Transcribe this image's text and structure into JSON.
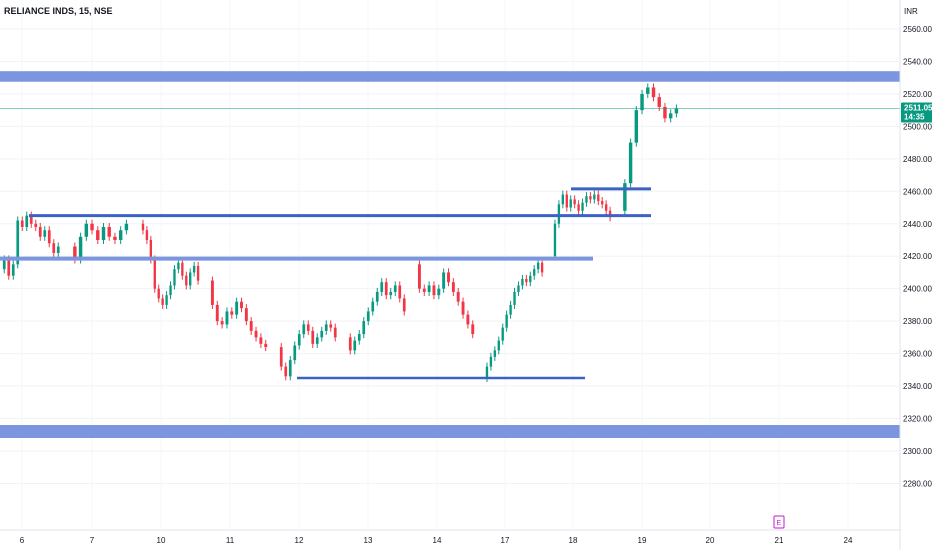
{
  "chart_data": {
    "type": "candlestick",
    "title": "RELIANCE INDS, 15, NSE",
    "currency": "INR",
    "ylim": [
      2272,
      2572
    ],
    "y_ticks": [
      2560,
      2540,
      2520,
      2500,
      2480,
      2460,
      2440,
      2420,
      2400,
      2380,
      2360,
      2340,
      2320,
      2300,
      2280
    ],
    "x_ticks": [
      "6",
      "7",
      "10",
      "11",
      "12",
      "13",
      "14",
      "17",
      "18",
      "19",
      "20",
      "21",
      "24"
    ],
    "grid": true,
    "current_price": {
      "value": "2511.05",
      "time": "14:35",
      "color": "#089981"
    },
    "earnings_marker": {
      "label": "E",
      "position": "21",
      "color": "#c21bd1"
    },
    "colors": {
      "up": "#089981",
      "down": "#f23645",
      "zone": "#7b96df",
      "line": "#3c62c4"
    },
    "zones": [
      {
        "from": 2527.5,
        "to": 2534
      },
      {
        "from": 2308,
        "to": 2316
      }
    ],
    "levels": [
      {
        "price": 2445,
        "from": "6",
        "to": "19",
        "kind": "line"
      },
      {
        "price": 2418.5,
        "from": "6",
        "to": "18",
        "kind": "zone-line"
      },
      {
        "price": 2345,
        "from": "12",
        "to": "18",
        "kind": "line"
      },
      {
        "price": 2461.5,
        "from": "18",
        "to": "19",
        "kind": "line"
      }
    ],
    "series": [
      {
        "session": "6",
        "path": [
          2412,
          2418,
          2408,
          2415,
          2442,
          2438,
          2445,
          2440,
          2438,
          2432,
          2436,
          2428,
          2422,
          2426
        ]
      },
      {
        "session": "7",
        "path": [
          2426,
          2418,
          2432,
          2440,
          2436,
          2430,
          2438,
          2432,
          2430,
          2436,
          2440
        ]
      },
      {
        "session": "10",
        "path": [
          2440,
          2436,
          2430,
          2418,
          2400,
          2394,
          2390,
          2396,
          2402,
          2412,
          2416,
          2408,
          2402,
          2410,
          2414,
          2405
        ]
      },
      {
        "session": "11",
        "path": [
          2405,
          2390,
          2380,
          2378,
          2386,
          2384,
          2392,
          2388,
          2380,
          2374,
          2370,
          2366,
          2364
        ]
      },
      {
        "session": "12",
        "path": [
          2364,
          2352,
          2346,
          2356,
          2365,
          2372,
          2378,
          2374,
          2366,
          2370,
          2374,
          2378,
          2376,
          2370
        ]
      },
      {
        "session": "13",
        "path": [
          2370,
          2362,
          2368,
          2372,
          2380,
          2386,
          2392,
          2398,
          2404,
          2396,
          2398,
          2402,
          2394,
          2386
        ]
      },
      {
        "session": "14",
        "path": [
          2415,
          2400,
          2398,
          2402,
          2396,
          2400,
          2410,
          2404,
          2398,
          2392,
          2384,
          2378,
          2372
        ]
      },
      {
        "session": "17",
        "path": [
          2345,
          2352,
          2358,
          2362,
          2368,
          2376,
          2384,
          2390,
          2398,
          2402,
          2406,
          2404,
          2408,
          2412,
          2416,
          2410
        ]
      },
      {
        "session": "18",
        "path": [
          2420,
          2440,
          2452,
          2458,
          2450,
          2455,
          2452,
          2448,
          2453,
          2457,
          2455,
          2458,
          2454,
          2452,
          2448,
          2444
        ]
      },
      {
        "session": "19",
        "path": [
          2448,
          2465,
          2490,
          2510,
          2520,
          2524,
          2518,
          2512,
          2505,
          2508,
          2511
        ]
      }
    ]
  }
}
